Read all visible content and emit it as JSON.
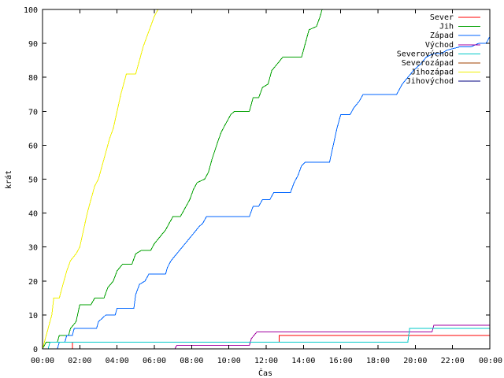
{
  "chart_data": {
    "type": "line",
    "xlabel": "Čas",
    "ylabel": "krát",
    "xlim_hours": [
      0,
      24
    ],
    "ylim": [
      0,
      100
    ],
    "x_ticks": [
      "00:00",
      "02:00",
      "04:00",
      "06:00",
      "08:00",
      "10:00",
      "12:00",
      "14:00",
      "16:00",
      "18:00",
      "20:00",
      "22:00",
      "00:00"
    ],
    "y_ticks": [
      "0",
      "10",
      "20",
      "30",
      "40",
      "50",
      "60",
      "70",
      "80",
      "90",
      "100"
    ],
    "grid": false,
    "legend_position": "top-right",
    "series": [
      {
        "name": "Sever",
        "color": "#ff0000",
        "points": [
          [
            0,
            0
          ],
          [
            1.6,
            0
          ],
          [
            1.6,
            2
          ],
          [
            12.7,
            2
          ],
          [
            12.7,
            4
          ],
          [
            24,
            4
          ]
        ]
      },
      {
        "name": "Jih",
        "color": "#00a000",
        "points": [
          [
            0,
            0
          ],
          [
            0.2,
            2
          ],
          [
            0.8,
            2
          ],
          [
            0.9,
            4
          ],
          [
            1.4,
            4
          ],
          [
            1.5,
            6
          ],
          [
            1.8,
            8
          ],
          [
            2.0,
            13
          ],
          [
            2.6,
            13
          ],
          [
            2.8,
            15
          ],
          [
            3.3,
            15
          ],
          [
            3.5,
            18
          ],
          [
            3.8,
            20
          ],
          [
            4.0,
            23
          ],
          [
            4.3,
            25
          ],
          [
            4.8,
            25
          ],
          [
            5.0,
            28
          ],
          [
            5.3,
            29
          ],
          [
            5.8,
            29
          ],
          [
            6.0,
            31
          ],
          [
            6.3,
            33
          ],
          [
            6.6,
            35
          ],
          [
            6.8,
            37
          ],
          [
            7.0,
            39
          ],
          [
            7.4,
            39
          ],
          [
            7.6,
            41
          ],
          [
            7.9,
            44
          ],
          [
            8.1,
            47
          ],
          [
            8.3,
            49
          ],
          [
            8.7,
            50
          ],
          [
            8.9,
            52
          ],
          [
            9.1,
            56
          ],
          [
            9.4,
            61
          ],
          [
            9.6,
            64
          ],
          [
            9.8,
            66
          ],
          [
            10.1,
            69
          ],
          [
            10.3,
            70
          ],
          [
            11.1,
            70
          ],
          [
            11.3,
            74
          ],
          [
            11.6,
            74
          ],
          [
            11.8,
            77
          ],
          [
            12.1,
            78
          ],
          [
            12.3,
            82
          ],
          [
            12.6,
            84
          ],
          [
            12.9,
            86
          ],
          [
            13.9,
            86
          ],
          [
            14.1,
            90
          ],
          [
            14.3,
            94
          ],
          [
            14.7,
            95
          ],
          [
            14.9,
            98
          ],
          [
            15.0,
            100
          ]
        ]
      },
      {
        "name": "Západ",
        "color": "#0066ff",
        "points": [
          [
            0,
            0
          ],
          [
            0.8,
            0
          ],
          [
            0.9,
            2
          ],
          [
            1.2,
            2
          ],
          [
            1.3,
            4
          ],
          [
            1.6,
            4
          ],
          [
            1.7,
            6
          ],
          [
            2.9,
            6
          ],
          [
            3.0,
            8
          ],
          [
            3.4,
            10
          ],
          [
            3.9,
            10
          ],
          [
            4.0,
            12
          ],
          [
            4.9,
            12
          ],
          [
            5.0,
            16
          ],
          [
            5.2,
            19
          ],
          [
            5.5,
            20
          ],
          [
            5.7,
            22
          ],
          [
            6.6,
            22
          ],
          [
            6.7,
            24
          ],
          [
            6.9,
            26
          ],
          [
            7.2,
            28
          ],
          [
            7.5,
            30
          ],
          [
            7.8,
            32
          ],
          [
            8.1,
            34
          ],
          [
            8.4,
            36
          ],
          [
            8.6,
            37
          ],
          [
            8.8,
            39
          ],
          [
            11.1,
            39
          ],
          [
            11.3,
            42
          ],
          [
            11.6,
            42
          ],
          [
            11.8,
            44
          ],
          [
            12.2,
            44
          ],
          [
            12.4,
            46
          ],
          [
            13.3,
            46
          ],
          [
            13.5,
            49
          ],
          [
            13.7,
            51
          ],
          [
            13.9,
            54
          ],
          [
            14.1,
            55
          ],
          [
            15.4,
            55
          ],
          [
            15.6,
            60
          ],
          [
            15.8,
            65
          ],
          [
            16.0,
            69
          ],
          [
            16.5,
            69
          ],
          [
            16.7,
            71
          ],
          [
            17.0,
            73
          ],
          [
            17.2,
            75
          ],
          [
            19.0,
            75
          ],
          [
            19.3,
            78
          ],
          [
            19.6,
            80
          ],
          [
            19.9,
            82
          ],
          [
            20.3,
            84
          ],
          [
            20.6,
            86
          ],
          [
            21.0,
            87
          ],
          [
            21.4,
            87
          ],
          [
            21.7,
            88
          ],
          [
            22.4,
            89
          ],
          [
            23.0,
            89
          ],
          [
            23.4,
            90
          ],
          [
            23.8,
            90
          ],
          [
            24,
            92
          ]
        ]
      },
      {
        "name": "Východ",
        "color": "#a000a0",
        "points": [
          [
            0,
            0
          ],
          [
            7.1,
            0
          ],
          [
            7.2,
            1
          ],
          [
            11.1,
            1
          ],
          [
            11.2,
            3
          ],
          [
            11.5,
            5
          ],
          [
            20.9,
            5
          ],
          [
            21.0,
            7
          ],
          [
            24,
            7
          ]
        ]
      },
      {
        "name": "Severovýchod",
        "color": "#00c8c8",
        "points": [
          [
            0,
            0
          ],
          [
            0.3,
            0
          ],
          [
            0.4,
            2
          ],
          [
            19.6,
            2
          ],
          [
            19.7,
            6
          ],
          [
            24,
            6
          ]
        ]
      },
      {
        "name": "Severozápad",
        "color": "#a04000",
        "points": [
          [
            0,
            0
          ],
          [
            24,
            0
          ]
        ]
      },
      {
        "name": "Jihozápad",
        "color": "#f0f000",
        "points": [
          [
            0,
            0
          ],
          [
            0.1,
            2
          ],
          [
            0.3,
            6
          ],
          [
            0.5,
            10
          ],
          [
            0.6,
            15
          ],
          [
            0.9,
            15
          ],
          [
            1.1,
            19
          ],
          [
            1.3,
            23
          ],
          [
            1.5,
            26
          ],
          [
            1.8,
            28
          ],
          [
            2.0,
            30
          ],
          [
            2.2,
            35
          ],
          [
            2.4,
            40
          ],
          [
            2.6,
            44
          ],
          [
            2.8,
            48
          ],
          [
            3.0,
            50
          ],
          [
            3.2,
            54
          ],
          [
            3.4,
            58
          ],
          [
            3.6,
            62
          ],
          [
            3.8,
            65
          ],
          [
            4.0,
            70
          ],
          [
            4.2,
            75
          ],
          [
            4.5,
            81
          ],
          [
            5.0,
            81
          ],
          [
            5.2,
            85
          ],
          [
            5.4,
            89
          ],
          [
            5.6,
            92
          ],
          [
            5.8,
            95
          ],
          [
            6.0,
            98
          ],
          [
            6.2,
            100
          ]
        ]
      },
      {
        "name": "Jihovýchod",
        "color": "#000080",
        "points": [
          [
            0,
            0
          ],
          [
            24,
            0
          ]
        ]
      }
    ]
  }
}
